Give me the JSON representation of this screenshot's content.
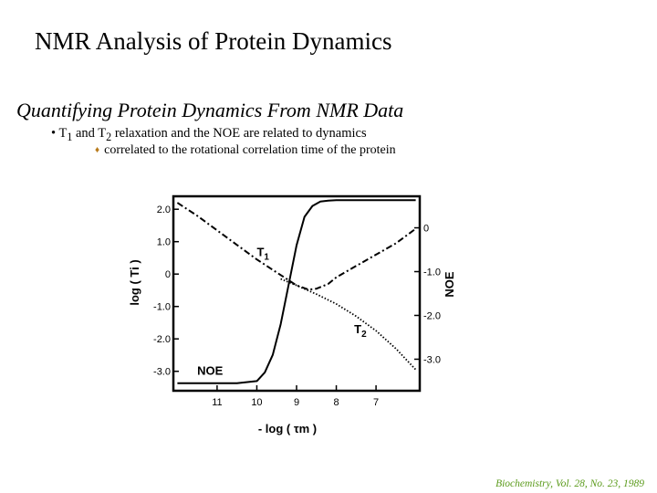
{
  "slide": {
    "title": "NMR Analysis of Protein Dynamics",
    "subtitle": "Quantifying Protein Dynamics From NMR Data",
    "bullet1": {
      "prefix": "T",
      "sub1": "1",
      "mid": " and T",
      "sub2": "2",
      "suffix": " relaxation and the NOE are related to dynamics"
    },
    "bullet2": "correlated to the rotational correlation time of the protein",
    "citation": "Biochemistry, Vol. 28, No. 23, 1989"
  },
  "chart_data": {
    "type": "line",
    "xlabel": "- log ( τm )",
    "ylabel_left": "log ( Ti )",
    "ylabel_right": "NOE",
    "x_ticks": [
      11,
      10,
      9,
      8,
      7
    ],
    "x_tick_labels": [
      "11",
      "10",
      "9",
      "8",
      "7"
    ],
    "y_left_ticks": [
      2.0,
      1.0,
      0,
      -1.0,
      -2.0,
      -3.0
    ],
    "y_left_tick_labels": [
      "2.0",
      "1.0",
      "0",
      "-1.0",
      "-2.0",
      "-3.0"
    ],
    "y_right_ticks": [
      0,
      -1.0,
      -2.0,
      -3.0
    ],
    "y_right_tick_labels": [
      "0",
      "-1.0",
      "-2.0",
      "-3.0"
    ],
    "xlim": [
      12.1,
      5.9
    ],
    "ylim_left": [
      -3.6,
      2.4
    ],
    "ylim_right": [
      -3.72,
      0.72
    ],
    "series": [
      {
        "name": "T1",
        "axis": "left",
        "style": "dash-dot",
        "x": [
          12.0,
          11.5,
          11.0,
          10.5,
          10.0,
          9.5,
          9.0,
          8.7,
          8.5,
          8.2,
          8.0,
          7.5,
          7.0,
          6.5,
          6.0
        ],
        "y": [
          2.2,
          1.8,
          1.35,
          0.9,
          0.45,
          0.05,
          -0.35,
          -0.48,
          -0.45,
          -0.3,
          -0.1,
          0.25,
          0.6,
          0.95,
          1.4
        ]
      },
      {
        "name": "T2",
        "axis": "left",
        "style": "dotted",
        "x": [
          9.4,
          9.0,
          8.5,
          8.0,
          7.5,
          7.0,
          6.5,
          6.0
        ],
        "y": [
          -0.15,
          -0.35,
          -0.62,
          -0.92,
          -1.3,
          -1.75,
          -2.3,
          -2.95
        ]
      },
      {
        "name": "NOE",
        "axis": "right",
        "style": "solid",
        "x": [
          12.0,
          10.5,
          10.0,
          9.8,
          9.6,
          9.4,
          9.2,
          9.0,
          8.8,
          8.6,
          8.4,
          8.2,
          8.0,
          7.5,
          7.0,
          6.0
        ],
        "y": [
          -3.55,
          -3.55,
          -3.5,
          -3.3,
          -2.9,
          -2.2,
          -1.3,
          -0.4,
          0.25,
          0.5,
          0.6,
          0.62,
          0.63,
          0.63,
          0.63,
          0.63
        ]
      }
    ],
    "annotations": [
      "T1",
      "T2",
      "NOE"
    ]
  }
}
